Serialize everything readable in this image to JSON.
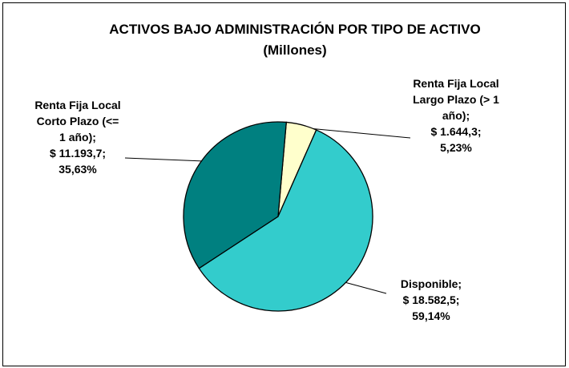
{
  "chart_data": {
    "type": "pie",
    "title": "ACTIVOS BAJO ADMINISTRACIÓN POR TIPO DE ACTIVO (Millones)",
    "categories": [
      "Renta Fija Local Largo Plazo (> 1 año);",
      "Disponible;",
      "Renta Fija Local Corto Plazo (<= 1 año);"
    ],
    "values": [
      1644.3,
      18582.5,
      11193.7
    ],
    "value_labels": [
      "$ 1.644,3;",
      "$ 18.582,5;",
      "$ 11.193,7;"
    ],
    "percentages": [
      5.23,
      59.14,
      35.63
    ],
    "percentage_labels": [
      "5,23%",
      "59,14%",
      "35,63%"
    ],
    "colors": [
      "#ffffcc",
      "#33cccc",
      "#008080"
    ]
  }
}
